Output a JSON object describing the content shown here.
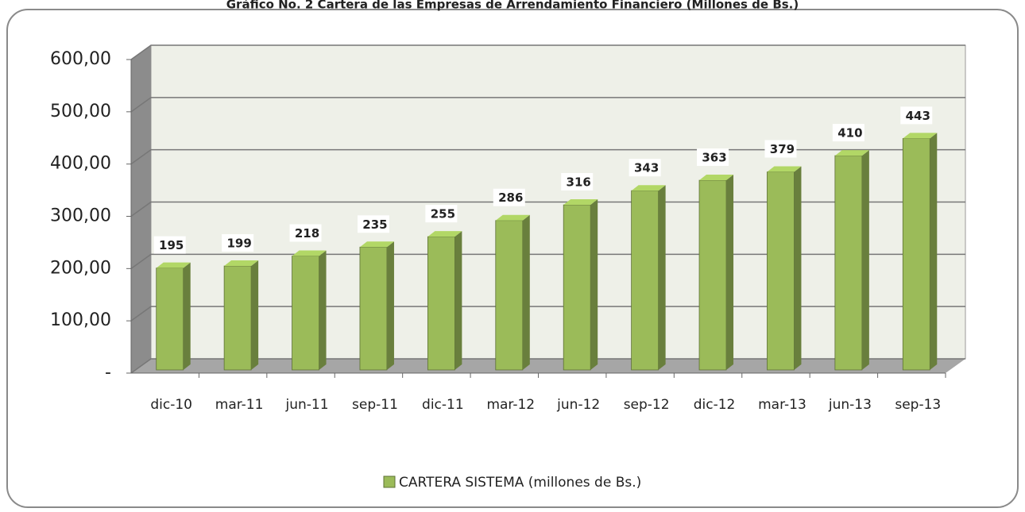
{
  "chart_data": {
    "type": "bar",
    "title": "Gráfico No. 2 Cartera de las Empresas de Arrendamiento Financiero (Millones de Bs.)",
    "categories": [
      "dic-10",
      "mar-11",
      "jun-11",
      "sep-11",
      "dic-11",
      "mar-12",
      "jun-12",
      "sep-12",
      "dic-12",
      "mar-13",
      "jun-13",
      "sep-13"
    ],
    "series": [
      {
        "name": "CARTERA SISTEMA (millones de Bs.)",
        "color": "#9bbb59",
        "values": [
          195,
          199,
          218,
          235,
          255,
          286,
          316,
          343,
          363,
          379,
          410,
          443
        ]
      }
    ],
    "ylim": [
      0,
      600
    ],
    "yticks": [
      {
        "value": 0,
        "label": "-"
      },
      {
        "value": 100,
        "label": "100,00"
      },
      {
        "value": 200,
        "label": "200,00"
      },
      {
        "value": 300,
        "label": "300,00"
      },
      {
        "value": 400,
        "label": "400,00"
      },
      {
        "value": 500,
        "label": "500,00"
      },
      {
        "value": 600,
        "label": "600,00"
      }
    ],
    "grid": true,
    "legend": "bottom"
  }
}
